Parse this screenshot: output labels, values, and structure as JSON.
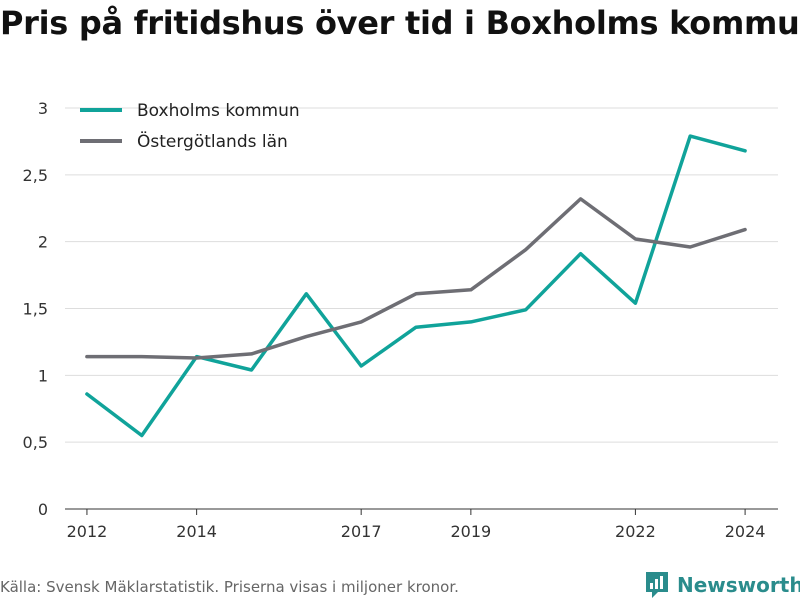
{
  "title": "Pris på fritidshus över tid i Boxholms kommun",
  "source": "Källa: Svensk Mäklarstatistik. Priserna visas i miljoner kronor.",
  "brand": "Newsworthy",
  "chart_data": {
    "type": "line",
    "x": [
      2012,
      2013,
      2014,
      2015,
      2016,
      2017,
      2018,
      2019,
      2020,
      2021,
      2022,
      2023,
      2024
    ],
    "x_ticks": [
      2012,
      2014,
      2017,
      2019,
      2022,
      2024
    ],
    "xlim": [
      2011.6,
      2024.6
    ],
    "ylim": [
      0,
      3
    ],
    "y_ticks": [
      0,
      0.5,
      1,
      1.5,
      2,
      2.5,
      3
    ],
    "y_tick_labels": [
      "0",
      "0,5",
      "1",
      "1,5",
      "2",
      "2,5",
      "3"
    ],
    "grid": true,
    "legend_position": "top-left",
    "series": [
      {
        "name": "Boxholms kommun",
        "color": "#10a39a",
        "values": [
          0.86,
          0.55,
          1.14,
          1.04,
          1.61,
          1.07,
          1.36,
          1.4,
          1.49,
          1.91,
          1.54,
          2.79,
          2.68
        ]
      },
      {
        "name": "Östergötlands län",
        "color": "#6e6e74",
        "values": [
          1.14,
          1.14,
          1.13,
          1.16,
          1.29,
          1.4,
          1.61,
          1.64,
          1.94,
          2.32,
          2.02,
          1.96,
          2.09
        ]
      }
    ]
  }
}
